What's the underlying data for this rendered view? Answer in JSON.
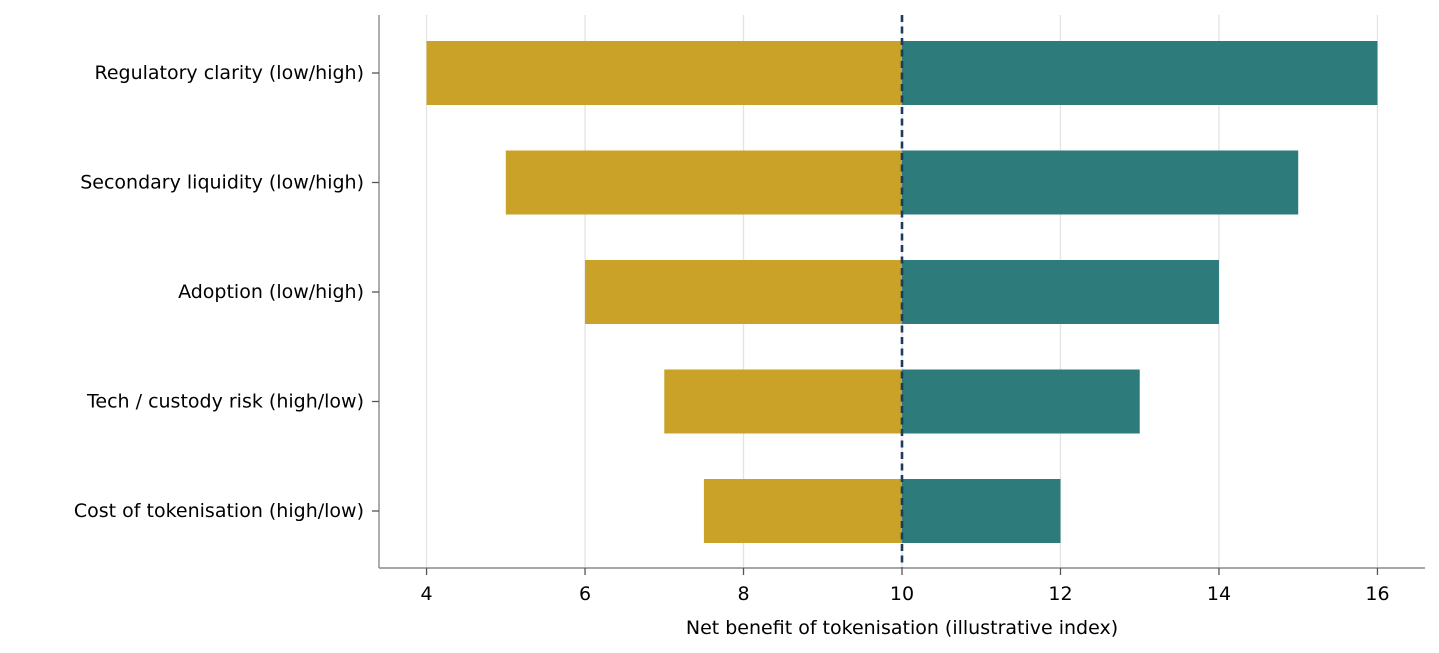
{
  "chart_data": {
    "type": "bar",
    "orientation": "horizontal",
    "subtype": "tornado",
    "title": "",
    "xlabel": "Net benefit of tokenisation (illustrative index)",
    "ylabel": "",
    "xlim": [
      3.4,
      16.6
    ],
    "xticks": [
      4,
      6,
      8,
      10,
      12,
      14,
      16
    ],
    "baseline": 10,
    "grid": "vertical",
    "legend": "none",
    "categories": [
      "Regulatory clarity (low/high)",
      "Secondary liquidity (low/high)",
      "Adoption (low/high)",
      "Tech / custody risk (high/low)",
      "Cost of tokenisation (high/low)"
    ],
    "series": [
      {
        "key": "low",
        "color": "#c9a227",
        "values": [
          4,
          5,
          6,
          7,
          7.5
        ]
      },
      {
        "key": "high",
        "color": "#2e7b7b",
        "values": [
          16,
          15,
          14,
          13,
          12
        ]
      }
    ],
    "baseline_color": "#1f3a5f"
  }
}
